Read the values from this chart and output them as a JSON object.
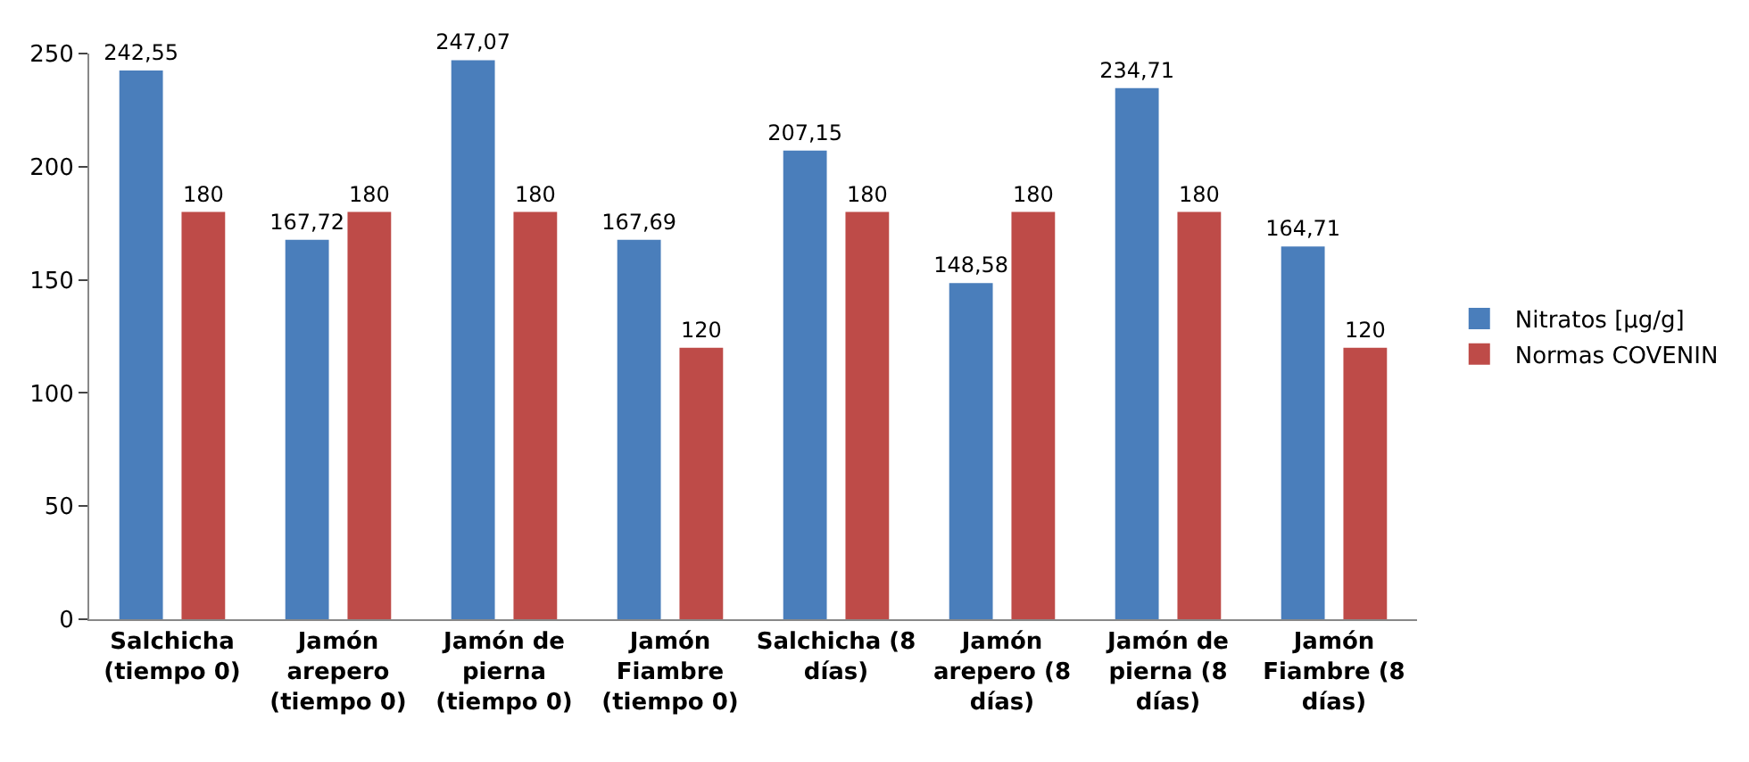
{
  "chart_data": {
    "type": "bar",
    "categories": [
      "Salchicha (tiempo 0)",
      "Jamón arepero (tiempo 0)",
      "Jamón de pierna (tiempo 0)",
      "Jamón Fiambre (tiempo 0)",
      "Salchicha (8 días)",
      "Jamón arepero (8 días)",
      "Jamón de pierna (8 días)",
      "Jamón Fiambre (8 días)"
    ],
    "series": [
      {
        "name": "Nitratos [µg/g]",
        "color": "#4a7ebb",
        "values": [
          242.55,
          167.72,
          247.07,
          167.69,
          207.15,
          148.58,
          234.71,
          164.71
        ],
        "value_labels": [
          "242,55",
          "167,72",
          "247,07",
          "167,69",
          "207,15",
          "148,58",
          "234,71",
          "164,71"
        ]
      },
      {
        "name": "Normas COVENIN",
        "color": "#be4b48",
        "values": [
          180,
          180,
          180,
          120,
          180,
          180,
          180,
          120
        ],
        "value_labels": [
          "180",
          "180",
          "180",
          "120",
          "180",
          "180",
          "180",
          "120"
        ]
      }
    ],
    "ylim": [
      0,
      250
    ],
    "yticks": [
      0,
      50,
      100,
      150,
      200,
      250
    ],
    "grid": false,
    "legend": "right"
  }
}
